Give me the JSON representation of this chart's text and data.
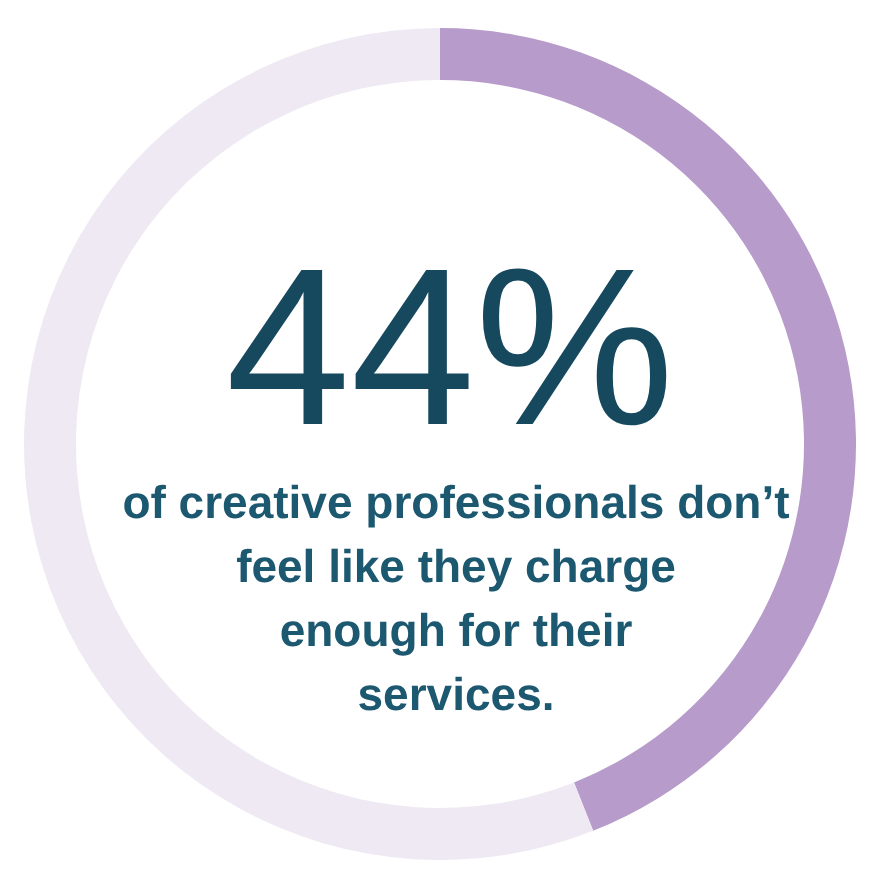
{
  "chart_data": {
    "type": "donut",
    "categories": [
      null,
      null
    ],
    "values": [
      44,
      56
    ],
    "colors": [
      "#b79bcb",
      "#efe9f4"
    ],
    "value_labels": [
      "44%",
      null
    ],
    "annotations": [
      "of creative professionals don’t feel like they charge enough for their services."
    ]
  }
}
